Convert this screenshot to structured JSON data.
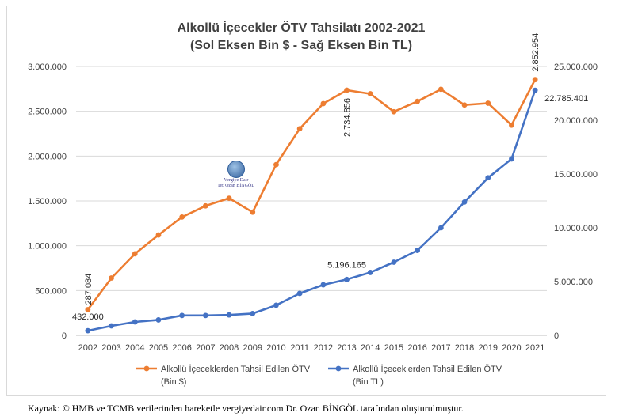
{
  "chart_data": {
    "type": "line",
    "title": "Alkollü İçecekler ÖTV Tahsilatı 2002-2021",
    "subtitle": "(Sol Eksen Bin $ - Sağ Eksen Bin TL)",
    "categories": [
      "2002",
      "2003",
      "2004",
      "2005",
      "2006",
      "2007",
      "2008",
      "2009",
      "2010",
      "2011",
      "2012",
      "2013",
      "2014",
      "2015",
      "2016",
      "2017",
      "2018",
      "2019",
      "2020",
      "2021"
    ],
    "left_axis": {
      "ylim": [
        0,
        3000000
      ],
      "ticks": [
        0,
        500000,
        1000000,
        1500000,
        2000000,
        2500000,
        3000000
      ],
      "tick_labels": [
        "0",
        "500.000",
        "1.000.000",
        "1.500.000",
        "2.000.000",
        "2.500.000",
        "3.000.000"
      ]
    },
    "right_axis": {
      "ylim": [
        0,
        25000000
      ],
      "ticks": [
        0,
        5000000,
        10000000,
        15000000,
        20000000,
        25000000
      ],
      "tick_labels": [
        "0",
        "5.000.000",
        "10.000.000",
        "15.000.000",
        "20.000.000",
        "25.000.000"
      ]
    },
    "series": [
      {
        "name": "Alkollü İçeceklerden Tahsil Edilen ÖTV",
        "unit_label": "(Bin $)",
        "axis": "left",
        "color": "#ED7D31",
        "values": [
          287084,
          640000,
          910000,
          1120000,
          1320000,
          1445000,
          1530000,
          1375000,
          1905000,
          2305000,
          2585000,
          2734856,
          2695000,
          2495000,
          2610000,
          2745000,
          2570000,
          2590000,
          2345000,
          2852954
        ]
      },
      {
        "name": "Alkollü İçeceklerden Tahsil Edilen ÖTV",
        "unit_label": "(Bin TL)",
        "axis": "right",
        "color": "#4472C4",
        "values": [
          432000,
          880000,
          1250000,
          1440000,
          1850000,
          1850000,
          1900000,
          2030000,
          2800000,
          3900000,
          4700000,
          5196165,
          5850000,
          6800000,
          7900000,
          10000000,
          12400000,
          14650000,
          16400000,
          22785401
        ]
      }
    ],
    "data_labels": [
      {
        "series": 0,
        "index": 0,
        "text": "287.084"
      },
      {
        "series": 0,
        "index": 11,
        "text": "2.734.856"
      },
      {
        "series": 0,
        "index": 19,
        "text": "2.852.954"
      },
      {
        "series": 1,
        "index": 0,
        "text": "432.000"
      },
      {
        "series": 1,
        "index": 11,
        "text": "5.196.165"
      },
      {
        "series": 1,
        "index": 19,
        "text": "22.785.401"
      }
    ]
  },
  "watermark": {
    "line1": "Vergiye Dair",
    "line2": "Dr. Ozan BİNGÖL"
  },
  "source_note": "Kaynak: © HMB ve TCMB verilerinden hareketle vergiyedair.com Dr. Ozan BİNGÖL tarafından oluşturulmuştur."
}
